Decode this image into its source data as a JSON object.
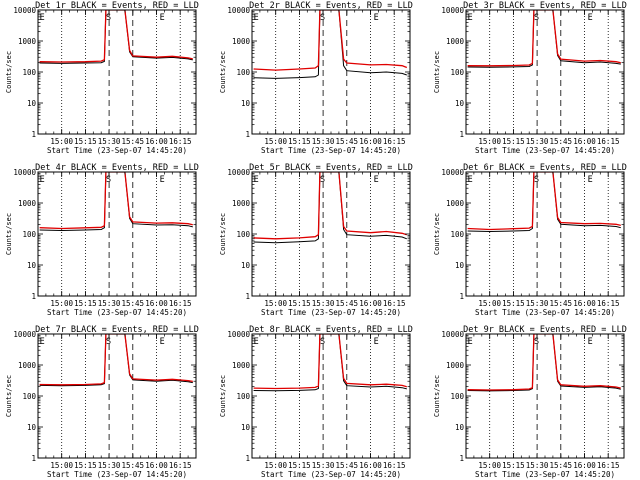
{
  "colors": {
    "events": "#000000",
    "lld": "#e00000",
    "background": "#ffffff",
    "axes": "#000000"
  },
  "chart_data": [
    {
      "type": "line",
      "title": "Det 1r BLACK = Events, RED = LLD",
      "xlabel": "Start Time (23-Sep-07 14:45:20)",
      "ylabel": "Counts/sec",
      "xlim": [
        "14:45",
        "16:25"
      ],
      "ylim": [
        1,
        10000
      ],
      "yscale": "log",
      "xticks": [
        "15:00",
        "15:15",
        "15:30",
        "15:45",
        "16:00",
        "16:15"
      ],
      "yticks": [
        "1",
        "10",
        "100",
        "1000",
        "10000"
      ],
      "markers": [
        {
          "time": "14:46",
          "label": "E"
        },
        {
          "time": "15:28",
          "label": "S"
        },
        {
          "time": "16:02",
          "label": "E"
        }
      ],
      "grid": "dotted verticals at 15:00, 15:15, 16:00, 16:15; dashed verticals at 15:30 and 15:45",
      "series": [
        {
          "name": "Events",
          "color": "#000000",
          "x": [
            "14:46",
            "15:00",
            "15:15",
            "15:25",
            "15:27",
            "15:28",
            "15:40",
            "15:43",
            "15:45",
            "16:00",
            "16:10",
            "16:20",
            "16:23"
          ],
          "y": [
            195,
            190,
            195,
            200,
            220,
            10000,
            10000,
            450,
            310,
            280,
            295,
            265,
            245
          ]
        },
        {
          "name": "LLD",
          "color": "#e00000",
          "x": [
            "14:46",
            "15:00",
            "15:15",
            "15:25",
            "15:27",
            "15:28",
            "15:40",
            "15:43",
            "15:45",
            "16:00",
            "16:10",
            "16:20",
            "16:23"
          ],
          "y": [
            215,
            210,
            215,
            225,
            250,
            10000,
            10000,
            500,
            330,
            300,
            320,
            285,
            265
          ]
        }
      ]
    },
    {
      "type": "line",
      "title": "Det 2r BLACK = Events, RED = LLD",
      "xlabel": "Start Time (23-Sep-07 14:45:20)",
      "ylabel": "Counts/sec",
      "xlim": [
        "14:45",
        "16:25"
      ],
      "ylim": [
        1,
        10000
      ],
      "yscale": "log",
      "xticks": [
        "15:00",
        "15:15",
        "15:30",
        "15:45",
        "16:00",
        "16:15"
      ],
      "yticks": [
        "1",
        "10",
        "100",
        "1000",
        "10000"
      ],
      "markers": [
        {
          "time": "14:46",
          "label": "E"
        },
        {
          "time": "15:28",
          "label": "S"
        },
        {
          "time": "16:02",
          "label": "E"
        }
      ],
      "grid": "dotted verticals at 15:00, 15:15, 16:00, 16:15; dashed verticals at 15:30 and 15:45",
      "series": [
        {
          "name": "Events",
          "color": "#000000",
          "x": [
            "14:46",
            "15:00",
            "15:15",
            "15:25",
            "15:27",
            "15:28",
            "15:40",
            "15:43",
            "15:45",
            "16:00",
            "16:10",
            "16:20",
            "16:23"
          ],
          "y": [
            65,
            62,
            66,
            70,
            80,
            10000,
            10000,
            160,
            110,
            95,
            100,
            90,
            80
          ]
        },
        {
          "name": "LLD",
          "color": "#e00000",
          "x": [
            "14:46",
            "15:00",
            "15:15",
            "15:25",
            "15:27",
            "15:28",
            "15:40",
            "15:43",
            "15:45",
            "16:00",
            "16:10",
            "16:20",
            "16:23"
          ],
          "y": [
            125,
            115,
            125,
            135,
            160,
            10000,
            10000,
            260,
            195,
            170,
            175,
            160,
            140
          ]
        }
      ]
    },
    {
      "type": "line",
      "title": "Det 3r BLACK = Events, RED = LLD",
      "xlabel": "Start Time (23-Sep-07 14:45:20)",
      "ylabel": "Counts/sec",
      "xlim": [
        "14:45",
        "16:25"
      ],
      "ylim": [
        1,
        10000
      ],
      "yscale": "log",
      "xticks": [
        "15:00",
        "15:15",
        "15:30",
        "15:45",
        "16:00",
        "16:15"
      ],
      "yticks": [
        "1",
        "10",
        "100",
        "1000",
        "10000"
      ],
      "markers": [
        {
          "time": "14:46",
          "label": "E"
        },
        {
          "time": "15:28",
          "label": "S"
        },
        {
          "time": "16:02",
          "label": "E"
        }
      ],
      "grid": "dotted verticals at 15:00, 15:15, 16:00, 16:15; dashed verticals at 15:30 and 15:45",
      "series": [
        {
          "name": "Events",
          "color": "#000000",
          "x": [
            "14:46",
            "15:00",
            "15:15",
            "15:25",
            "15:27",
            "15:28",
            "15:40",
            "15:43",
            "15:45",
            "16:00",
            "16:10",
            "16:20",
            "16:23"
          ],
          "y": [
            145,
            142,
            146,
            150,
            170,
            10000,
            10000,
            340,
            230,
            200,
            210,
            190,
            180
          ]
        },
        {
          "name": "LLD",
          "color": "#e00000",
          "x": [
            "14:46",
            "15:00",
            "15:15",
            "15:25",
            "15:27",
            "15:28",
            "15:40",
            "15:43",
            "15:45",
            "16:00",
            "16:10",
            "16:20",
            "16:23"
          ],
          "y": [
            160,
            158,
            162,
            168,
            190,
            10000,
            10000,
            380,
            260,
            225,
            235,
            215,
            200
          ]
        }
      ]
    },
    {
      "type": "line",
      "title": "Det 4r BLACK = Events, RED = LLD",
      "xlabel": "Start Time (23-Sep-07 14:45:20)",
      "ylabel": "Counts/sec",
      "xlim": [
        "14:45",
        "16:25"
      ],
      "ylim": [
        1,
        10000
      ],
      "yscale": "log",
      "xticks": [
        "15:00",
        "15:15",
        "15:30",
        "15:45",
        "16:00",
        "16:15"
      ],
      "yticks": [
        "1",
        "10",
        "100",
        "1000",
        "10000"
      ],
      "markers": [
        {
          "time": "14:46",
          "label": "E"
        },
        {
          "time": "15:28",
          "label": "S"
        },
        {
          "time": "16:02",
          "label": "E"
        }
      ],
      "grid": "dotted verticals at 15:00, 15:15, 16:00, 16:15; dashed verticals at 15:30 and 15:45",
      "series": [
        {
          "name": "Events",
          "color": "#000000",
          "x": [
            "14:46",
            "15:00",
            "15:15",
            "15:25",
            "15:27",
            "15:28",
            "15:40",
            "15:43",
            "15:45",
            "16:00",
            "16:10",
            "16:20",
            "16:23"
          ],
          "y": [
            135,
            130,
            135,
            140,
            160,
            10000,
            10000,
            320,
            215,
            195,
            200,
            185,
            170
          ]
        },
        {
          "name": "LLD",
          "color": "#e00000",
          "x": [
            "14:46",
            "15:00",
            "15:15",
            "15:25",
            "15:27",
            "15:28",
            "15:40",
            "15:43",
            "15:45",
            "16:00",
            "16:10",
            "16:20",
            "16:23"
          ],
          "y": [
            160,
            150,
            158,
            165,
            185,
            10000,
            10000,
            360,
            245,
            225,
            230,
            215,
            200
          ]
        }
      ]
    },
    {
      "type": "line",
      "title": "Det 5r BLACK = Events, RED = LLD",
      "xlabel": "Start Time (23-Sep-07 14:45:20)",
      "ylabel": "Counts/sec",
      "xlim": [
        "14:45",
        "16:25"
      ],
      "ylim": [
        1,
        10000
      ],
      "yscale": "log",
      "xticks": [
        "15:00",
        "15:15",
        "15:30",
        "15:45",
        "16:00",
        "16:15"
      ],
      "yticks": [
        "1",
        "10",
        "100",
        "1000",
        "10000"
      ],
      "markers": [
        {
          "time": "14:46",
          "label": "E"
        },
        {
          "time": "15:28",
          "label": "S"
        },
        {
          "time": "16:02",
          "label": "E"
        }
      ],
      "grid": "dotted verticals at 15:00, 15:15, 16:00, 16:15; dashed verticals at 15:30 and 15:45",
      "series": [
        {
          "name": "Events",
          "color": "#000000",
          "x": [
            "14:46",
            "15:00",
            "15:15",
            "15:25",
            "15:27",
            "15:28",
            "15:40",
            "15:43",
            "15:45",
            "16:00",
            "16:10",
            "16:20",
            "16:23"
          ],
          "y": [
            55,
            52,
            56,
            60,
            70,
            10000,
            10000,
            140,
            95,
            85,
            90,
            80,
            70
          ]
        },
        {
          "name": "LLD",
          "color": "#e00000",
          "x": [
            "14:46",
            "15:00",
            "15:15",
            "15:25",
            "15:27",
            "15:28",
            "15:40",
            "15:43",
            "15:45",
            "16:00",
            "16:10",
            "16:20",
            "16:23"
          ],
          "y": [
            75,
            70,
            75,
            82,
            95,
            10000,
            10000,
            175,
            125,
            110,
            120,
            105,
            95
          ]
        }
      ]
    },
    {
      "type": "line",
      "title": "Det 6r BLACK = Events, RED = LLD",
      "xlabel": "Start Time (23-Sep-07 14:45:20)",
      "ylabel": "Counts/sec",
      "xlim": [
        "14:45",
        "16:25"
      ],
      "ylim": [
        1,
        10000
      ],
      "yscale": "log",
      "xticks": [
        "15:00",
        "15:15",
        "15:30",
        "15:45",
        "16:00",
        "16:15"
      ],
      "yticks": [
        "1",
        "10",
        "100",
        "1000",
        "10000"
      ],
      "markers": [
        {
          "time": "14:46",
          "label": "E"
        },
        {
          "time": "15:28",
          "label": "S"
        },
        {
          "time": "16:02",
          "label": "E"
        }
      ],
      "grid": "dotted verticals at 15:00, 15:15, 16:00, 16:15; dashed verticals at 15:30 and 15:45",
      "series": [
        {
          "name": "Events",
          "color": "#000000",
          "x": [
            "14:46",
            "15:00",
            "15:15",
            "15:25",
            "15:27",
            "15:28",
            "15:40",
            "15:43",
            "15:45",
            "16:00",
            "16:10",
            "16:20",
            "16:23"
          ],
          "y": [
            125,
            120,
            125,
            130,
            150,
            10000,
            10000,
            300,
            205,
            185,
            190,
            175,
            160
          ]
        },
        {
          "name": "LLD",
          "color": "#e00000",
          "x": [
            "14:46",
            "15:00",
            "15:15",
            "15:25",
            "15:27",
            "15:28",
            "15:40",
            "15:43",
            "15:45",
            "16:00",
            "16:10",
            "16:20",
            "16:23"
          ],
          "y": [
            150,
            140,
            148,
            155,
            175,
            10000,
            10000,
            340,
            235,
            215,
            220,
            205,
            190
          ]
        }
      ]
    },
    {
      "type": "line",
      "title": "Det 7r BLACK = Events, RED = LLD",
      "xlabel": "Start Time (23-Sep-07 14:45:20)",
      "ylabel": "Counts/sec",
      "xlim": [
        "14:45",
        "16:25"
      ],
      "ylim": [
        1,
        10000
      ],
      "yscale": "log",
      "xticks": [
        "15:00",
        "15:15",
        "15:30",
        "15:45",
        "16:00",
        "16:15"
      ],
      "yticks": [
        "1",
        "10",
        "100",
        "1000",
        "10000"
      ],
      "markers": [
        {
          "time": "14:46",
          "label": "E"
        },
        {
          "time": "15:28",
          "label": "S"
        },
        {
          "time": "16:02",
          "label": "E"
        }
      ],
      "grid": "dotted verticals at 15:00, 15:15, 16:00, 16:15; dashed verticals at 15:30 and 15:45",
      "series": [
        {
          "name": "Events",
          "color": "#000000",
          "x": [
            "14:46",
            "15:00",
            "15:15",
            "15:25",
            "15:27",
            "15:28",
            "15:40",
            "15:43",
            "15:45",
            "16:00",
            "16:10",
            "16:20",
            "16:23"
          ],
          "y": [
            220,
            215,
            220,
            230,
            250,
            10000,
            10000,
            480,
            330,
            300,
            320,
            290,
            270
          ]
        },
        {
          "name": "LLD",
          "color": "#e00000",
          "x": [
            "14:46",
            "15:00",
            "15:15",
            "15:25",
            "15:27",
            "15:28",
            "15:40",
            "15:43",
            "15:45",
            "16:00",
            "16:10",
            "16:20",
            "16:23"
          ],
          "y": [
            235,
            230,
            235,
            245,
            270,
            10000,
            10000,
            520,
            355,
            325,
            345,
            315,
            295
          ]
        }
      ]
    },
    {
      "type": "line",
      "title": "Det 8r BLACK = Events, RED = LLD",
      "xlabel": "Start Time (23-Sep-07 14:45:20)",
      "ylabel": "Counts/sec",
      "xlim": [
        "14:45",
        "16:25"
      ],
      "ylim": [
        1,
        10000
      ],
      "yscale": "log",
      "xticks": [
        "15:00",
        "15:15",
        "15:30",
        "15:45",
        "16:00",
        "16:15"
      ],
      "yticks": [
        "1",
        "10",
        "100",
        "1000",
        "10000"
      ],
      "markers": [
        {
          "time": "14:46",
          "label": "E"
        },
        {
          "time": "15:28",
          "label": "S"
        },
        {
          "time": "16:02",
          "label": "E"
        }
      ],
      "grid": "dotted verticals at 15:00, 15:15, 16:00, 16:15; dashed verticals at 15:30 and 15:45",
      "series": [
        {
          "name": "Events",
          "color": "#000000",
          "x": [
            "14:46",
            "15:00",
            "15:15",
            "15:25",
            "15:27",
            "15:28",
            "15:40",
            "15:43",
            "15:45",
            "16:00",
            "16:10",
            "16:20",
            "16:23"
          ],
          "y": [
            150,
            148,
            152,
            158,
            175,
            10000,
            10000,
            310,
            215,
            195,
            205,
            185,
            170
          ]
        },
        {
          "name": "LLD",
          "color": "#e00000",
          "x": [
            "14:46",
            "15:00",
            "15:15",
            "15:25",
            "15:27",
            "15:28",
            "15:40",
            "15:43",
            "15:45",
            "16:00",
            "16:10",
            "16:20",
            "16:23"
          ],
          "y": [
            180,
            175,
            180,
            190,
            210,
            10000,
            10000,
            370,
            255,
            230,
            240,
            220,
            200
          ]
        }
      ]
    },
    {
      "type": "line",
      "title": "Det 9r BLACK = Events, RED = LLD",
      "xlabel": "Start Time (23-Sep-07 14:45:20)",
      "ylabel": "Counts/sec",
      "xlim": [
        "14:45",
        "16:25"
      ],
      "ylim": [
        1,
        10000
      ],
      "yscale": "log",
      "xticks": [
        "15:00",
        "15:15",
        "15:30",
        "15:45",
        "16:00",
        "16:15"
      ],
      "yticks": [
        "1",
        "10",
        "100",
        "1000",
        "10000"
      ],
      "markers": [
        {
          "time": "14:46",
          "label": "E"
        },
        {
          "time": "15:28",
          "label": "S"
        },
        {
          "time": "16:02",
          "label": "E"
        }
      ],
      "grid": "dotted verticals at 15:00, 15:15, 16:00, 16:15; dashed verticals at 15:30 and 15:45",
      "series": [
        {
          "name": "Events",
          "color": "#000000",
          "x": [
            "14:46",
            "15:00",
            "15:15",
            "15:25",
            "15:27",
            "15:28",
            "15:40",
            "15:43",
            "15:45",
            "16:00",
            "16:10",
            "16:20",
            "16:23"
          ],
          "y": [
            150,
            146,
            150,
            156,
            172,
            10000,
            10000,
            300,
            210,
            190,
            200,
            180,
            165
          ]
        },
        {
          "name": "LLD",
          "color": "#e00000",
          "x": [
            "14:46",
            "15:00",
            "15:15",
            "15:25",
            "15:27",
            "15:28",
            "15:40",
            "15:43",
            "15:45",
            "16:00",
            "16:10",
            "16:20",
            "16:23"
          ],
          "y": [
            160,
            156,
            160,
            168,
            185,
            10000,
            10000,
            330,
            230,
            205,
            215,
            195,
            180
          ]
        }
      ]
    }
  ]
}
